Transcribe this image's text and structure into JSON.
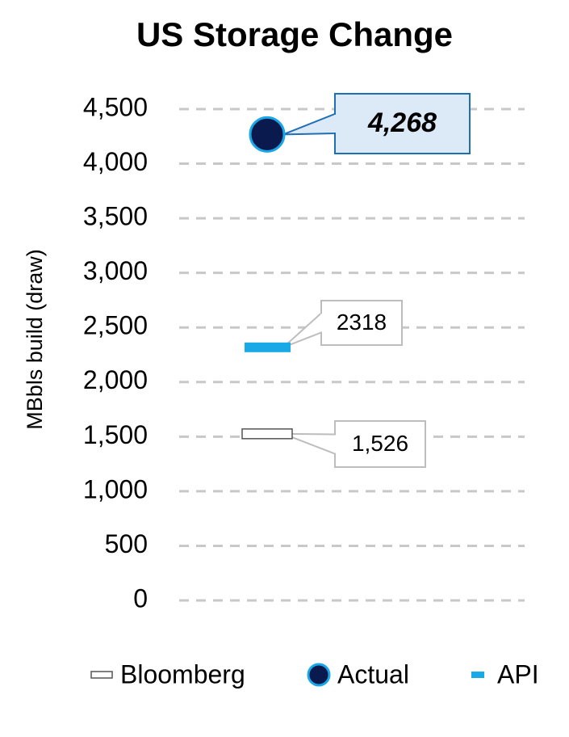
{
  "chart_data": {
    "type": "marker",
    "title": "US Storage Change",
    "y_label": "MBbls build (draw)",
    "ylim": [
      0,
      4500
    ],
    "yticks": [
      0,
      500,
      {
        "value": 1000,
        "label": "1,000"
      },
      {
        "value": 1500,
        "label": "1,500"
      },
      {
        "value": 2000,
        "label": "2,000"
      },
      {
        "value": 2500,
        "label": "2,500"
      },
      {
        "value": 3000,
        "label": "3,000"
      },
      {
        "value": 3500,
        "label": "3,500"
      },
      {
        "value": 4000,
        "label": "4,000"
      },
      {
        "value": 4500,
        "label": "4,500"
      }
    ],
    "grid": true,
    "legend": "bottom",
    "series": [
      {
        "name": "Bloomberg",
        "marker": "outline-bar",
        "color": "#ffffff",
        "values": [
          1526
        ],
        "value_labels": [
          "1,526"
        ]
      },
      {
        "name": "Actual",
        "marker": "circle",
        "color": "#0b1a4e",
        "values": [
          4268
        ],
        "value_labels": [
          "4,268"
        ]
      },
      {
        "name": "API",
        "marker": "bar",
        "color": "#19a9e6",
        "values": [
          2318
        ]
      }
    ]
  }
}
